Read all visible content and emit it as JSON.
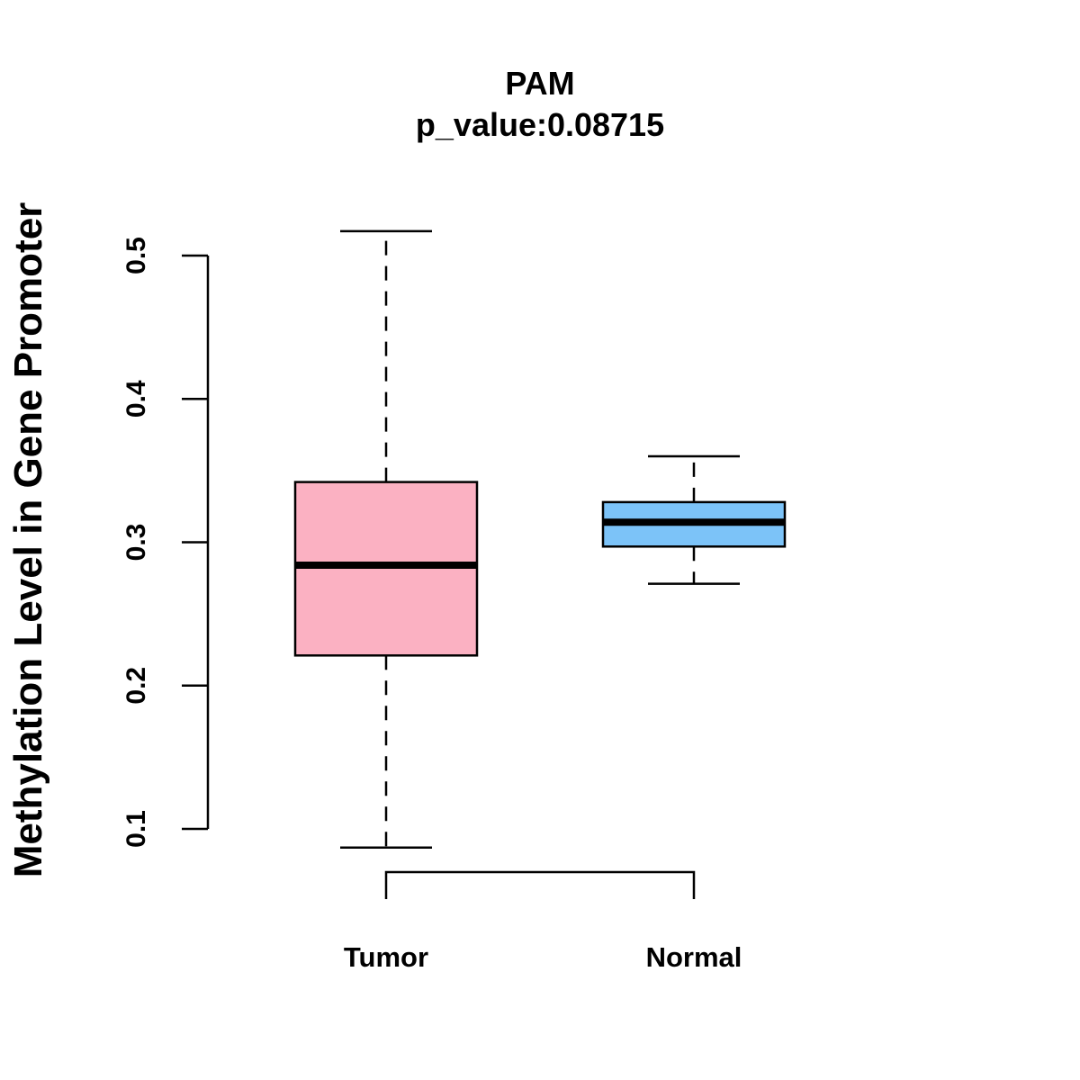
{
  "chart_data": {
    "type": "boxplot",
    "title": "PAM",
    "subtitle": "p_value:0.08715",
    "xlabel": "",
    "ylabel": "Methylation Level in Gene Promoter",
    "ylim": [
      0.1,
      0.5
    ],
    "yticks": [
      0.1,
      0.2,
      0.3,
      0.4,
      0.5
    ],
    "ytick_labels": [
      "0.1",
      "0.2",
      "0.3",
      "0.4",
      "0.5"
    ],
    "grid": false,
    "categories": [
      "Tumor",
      "Normal"
    ],
    "series": [
      {
        "category": "Tumor",
        "color": "#FBB1C2",
        "min": 0.087,
        "q1": 0.221,
        "median": 0.284,
        "q3": 0.342,
        "max": 0.517
      },
      {
        "category": "Normal",
        "color": "#7CC3F8",
        "min": 0.271,
        "q1": 0.297,
        "median": 0.314,
        "q3": 0.328,
        "max": 0.36
      }
    ],
    "comparison_bracket": [
      "Tumor",
      "Normal"
    ]
  }
}
